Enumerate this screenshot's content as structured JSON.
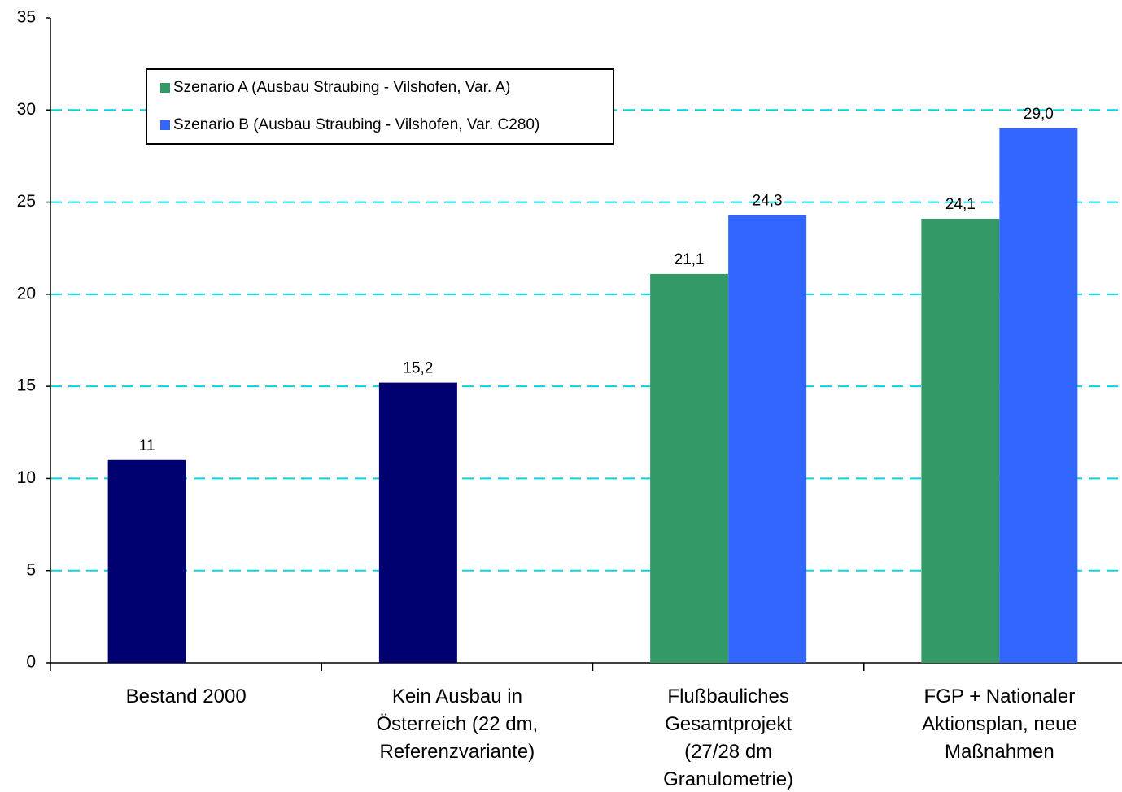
{
  "chart_data": {
    "type": "bar",
    "categories": [
      "Bestand 2000",
      "Kein Ausbau in Österreich (22 dm, Referenzvariante)",
      "Flußbauliches Gesamtprojekt (27/28 dm Granulometrie)",
      "FGP + Nationaler Aktionsplan, neue Maßnahmen"
    ],
    "series": [
      {
        "name": "Szenario A (Ausbau Straubing - Vilshofen, Var. A)",
        "color": "#339966",
        "point_colors": [
          "#000070",
          "#000070",
          "#339966",
          "#339966"
        ],
        "values": [
          11,
          15.2,
          21.1,
          24.1
        ],
        "value_labels": [
          "11",
          "15,2",
          "21,1",
          "24,1"
        ]
      },
      {
        "name": "Szenario B (Ausbau Straubing - Vilshofen, Var. C280)",
        "color": "#3366ff",
        "values": [
          null,
          null,
          24.3,
          29.0
        ],
        "value_labels": [
          null,
          null,
          "24,3",
          "29,0"
        ]
      }
    ],
    "ylim": [
      0,
      35
    ],
    "yticks": [
      0,
      5,
      10,
      15,
      20,
      25,
      30,
      35
    ],
    "grid": true,
    "legend": "upper left"
  }
}
